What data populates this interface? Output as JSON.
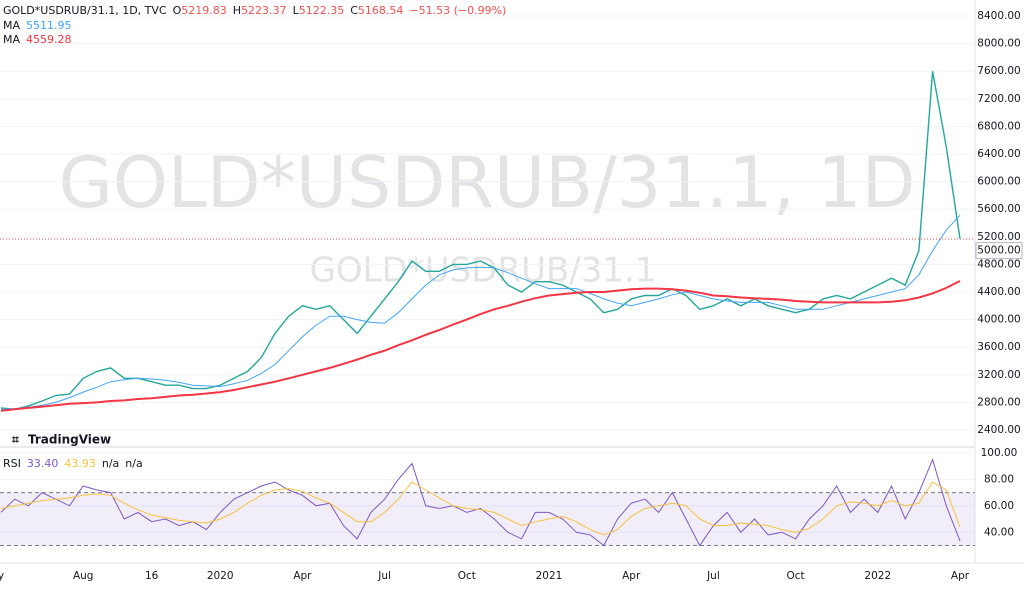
{
  "header": {
    "symbol": "GOLD*USDRUB/31.1, 1D, TVC",
    "ohlc": [
      {
        "key": "O",
        "value": "5219.83"
      },
      {
        "key": "H",
        "value": "5223.37"
      },
      {
        "key": "L",
        "value": "5122.35"
      },
      {
        "key": "C"
      }
    ],
    "change": "−51.53 (−0.99%)"
  },
  "watermark": {
    "main": "GOLD*USDRUB/31.1, 1D",
    "sub": "GOLD*USDRUB/31.1"
  },
  "logo": "TradingView",
  "chart_data": [
    {
      "type": "line",
      "categories": [
        "y",
        null,
        null,
        null,
        null,
        null,
        "Aug",
        null,
        null,
        null,
        null,
        "16",
        null,
        null,
        null,
        null,
        "2020",
        null,
        null,
        null,
        null,
        null,
        "Apr",
        null,
        null,
        null,
        null,
        null,
        "Jul",
        null,
        null,
        null,
        null,
        null,
        "Oct",
        null,
        null,
        null,
        null,
        null,
        "2021",
        null,
        null,
        null,
        null,
        null,
        "Apr",
        null,
        null,
        null,
        null,
        null,
        "Jul",
        null,
        null,
        null,
        null,
        null,
        "Oct",
        null,
        null,
        null,
        null,
        null,
        "2022",
        null,
        null,
        null,
        null,
        null,
        "Apr"
      ],
      "ylim": [
        2183,
        8632
      ],
      "yticks": [
        {
          "value": 8400,
          "label": "8400.00"
        },
        {
          "value": 8000,
          "label": "8000.00"
        },
        {
          "value": 7600,
          "label": "7600.00"
        },
        {
          "value": 7200,
          "label": "7200.00"
        },
        {
          "value": 6800,
          "label": "6800.00"
        },
        {
          "value": 6400,
          "label": "6400.00"
        },
        {
          "value": 6000,
          "label": "6000.00"
        },
        {
          "value": 5600,
          "label": "5600.00"
        },
        {
          "value": 5200,
          "label": "5200.00"
        },
        {
          "value": 4800,
          "label": "4800.00"
        },
        {
          "value": 4400,
          "label": "4400.00"
        },
        {
          "value": 4000,
          "label": "4000.00"
        },
        {
          "value": 3600,
          "label": "3600.00"
        },
        {
          "value": 3200,
          "label": "3200.00"
        },
        {
          "value": 2800,
          "label": "2800.00"
        },
        {
          "value": 2400,
          "label": "2400.00"
        }
      ],
      "price_marker": {
        "value": 5000,
        "label": "5000.00"
      },
      "series": [
        {
          "color": "#26a69a",
          "values": [
            2720,
            2700,
            2750,
            2820,
            2900,
            2920,
            3150,
            3250,
            3300,
            3150,
            3150,
            3100,
            3050,
            3050,
            3000,
            3000,
            3050,
            3150,
            3250,
            3450,
            3800,
            4050,
            4200,
            4150,
            4200,
            4000,
            3800,
            4050,
            4300,
            4550,
            4850,
            4700,
            4700,
            4800,
            4800,
            4850,
            4750,
            4500,
            4400,
            4550,
            4550,
            4500,
            4400,
            4300,
            4100,
            4150,
            4300,
            4350,
            4350,
            4450,
            4350,
            4150,
            4200,
            4300,
            4200,
            4300,
            4200,
            4150,
            4100,
            4150,
            4300,
            4350,
            4300,
            4400,
            4500,
            4600,
            4500,
            5000,
            7600,
            6500,
            5168.54
          ]
        },
        {
          "name": "MA",
          "color": "#42a5f5",
          "values": [
            2700,
            2710,
            2730,
            2760,
            2800,
            2870,
            2950,
            3020,
            3100,
            3130,
            3150,
            3140,
            3120,
            3090,
            3050,
            3040,
            3030,
            3070,
            3120,
            3220,
            3350,
            3550,
            3750,
            3920,
            4050,
            4050,
            4000,
            3960,
            3950,
            4100,
            4300,
            4500,
            4650,
            4720,
            4750,
            4760,
            4750,
            4680,
            4600,
            4520,
            4450,
            4450,
            4450,
            4380,
            4300,
            4240,
            4200,
            4250,
            4300,
            4360,
            4400,
            4350,
            4300,
            4270,
            4250,
            4250,
            4250,
            4200,
            4150,
            4150,
            4150,
            4200,
            4250,
            4300,
            4350,
            4400,
            4450,
            4650,
            5000,
            5300,
            5511.95
          ]
        },
        {
          "name": "MA",
          "color": "#f23645",
          "values": [
            2680,
            2700,
            2720,
            2740,
            2760,
            2780,
            2790,
            2800,
            2820,
            2830,
            2850,
            2860,
            2880,
            2900,
            2910,
            2930,
            2950,
            2980,
            3020,
            3060,
            3100,
            3150,
            3200,
            3250,
            3300,
            3360,
            3420,
            3490,
            3550,
            3630,
            3700,
            3780,
            3850,
            3930,
            4000,
            4080,
            4150,
            4200,
            4260,
            4310,
            4350,
            4370,
            4390,
            4400,
            4400,
            4420,
            4440,
            4450,
            4450,
            4440,
            4420,
            4390,
            4350,
            4340,
            4320,
            4310,
            4300,
            4290,
            4270,
            4260,
            4250,
            4250,
            4250,
            4250,
            4250,
            4260,
            4280,
            4320,
            4380,
            4460,
            4559.28
          ]
        }
      ]
    },
    {
      "type": "line",
      "ylim": [
        19,
        103
      ],
      "yticks": [
        {
          "value": 100,
          "label": "100.00"
        },
        {
          "value": 80,
          "label": "80.00"
        },
        {
          "value": 60,
          "label": "60.00"
        },
        {
          "value": 40,
          "label": "40.00"
        }
      ],
      "bands": [
        30,
        70
      ],
      "extra_values": [
        "n/a",
        "n/a"
      ],
      "series": [
        {
          "name": "RSI",
          "color": "#7e57c2",
          "last_label": "33.40",
          "values": [
            55,
            65,
            60,
            70,
            65,
            60,
            75,
            72,
            70,
            50,
            55,
            48,
            50,
            45,
            48,
            42,
            55,
            65,
            70,
            75,
            78,
            72,
            68,
            60,
            62,
            45,
            35,
            55,
            65,
            80,
            92,
            60,
            58,
            60,
            55,
            58,
            50,
            40,
            35,
            55,
            55,
            50,
            40,
            38,
            30,
            50,
            62,
            65,
            55,
            70,
            50,
            30,
            45,
            55,
            40,
            50,
            38,
            40,
            35,
            50,
            60,
            75,
            55,
            65,
            55,
            75,
            50,
            70,
            95,
            60,
            33.4
          ]
        },
        {
          "color": "#f5c242",
          "values": [
            58,
            60,
            62,
            64,
            65,
            66,
            68,
            69,
            68,
            62,
            57,
            53,
            51,
            49,
            48,
            47,
            50,
            55,
            62,
            68,
            72,
            73,
            71,
            66,
            62,
            55,
            48,
            48,
            55,
            65,
            78,
            72,
            66,
            60,
            58,
            57,
            55,
            50,
            45,
            48,
            50,
            52,
            48,
            42,
            38,
            42,
            52,
            58,
            60,
            62,
            60,
            50,
            45,
            45,
            47,
            46,
            45,
            42,
            40,
            43,
            50,
            60,
            63,
            62,
            60,
            64,
            60,
            62,
            78,
            72,
            43.93
          ]
        }
      ]
    }
  ]
}
